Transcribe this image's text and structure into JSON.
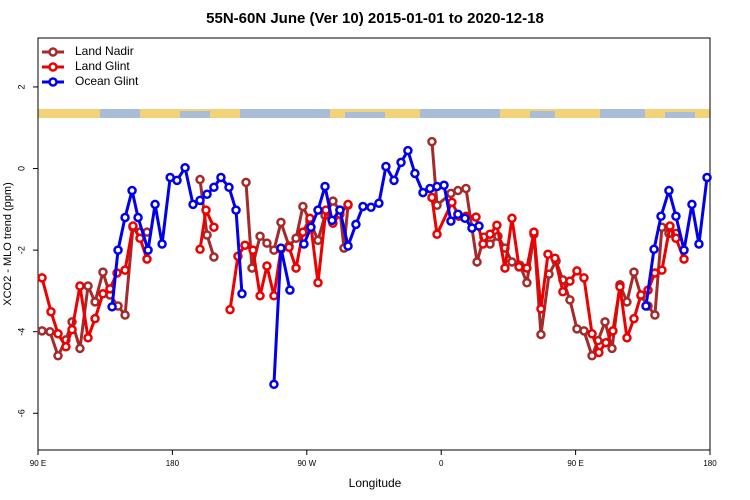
{
  "chart_data": {
    "type": "line",
    "title": "55N-60N June (Ver 10)   2015-01-01 to 2020-12-18",
    "xlabel": "Longitude",
    "ylabel": "XCO2 - MLO trend (ppm)",
    "xlim": [
      90,
      540
    ],
    "ylim": [
      -6.9,
      3.2
    ],
    "xticks": [
      {
        "value": 90,
        "label": "90 E"
      },
      {
        "value": 180,
        "label": "180"
      },
      {
        "value": 270,
        "label": "90 W"
      },
      {
        "value": 360,
        "label": "0"
      },
      {
        "value": 450,
        "label": "90 E"
      },
      {
        "value": 540,
        "label": "180"
      }
    ],
    "yticks": [
      -6,
      -4,
      -2,
      0,
      2
    ],
    "legend": "top-left",
    "series": [
      {
        "name": "Land Nadir",
        "color": "#a52a2a",
        "x": [
          92.7,
          98.0,
          103.4,
          108.7,
          112.8,
          118.1,
          123.5,
          128.2,
          133.5,
          138.2,
          143.6,
          148.3,
          153.6,
          158.3,
          163.0,
          null,
          198.5,
          203.2,
          207.8,
          null,
          229.3,
          233.3,
          238.7,
          243.3,
          248.0,
          252.7,
          258.1,
          262.8,
          267.4,
          272.1,
          277.5,
          282.2,
          287.5,
          292.2,
          294.9,
          297.6,
          null,
          353.8,
          357.2,
          366.5,
          371.2,
          376.6,
          384.0,
          388.6,
          392.7,
          398.0,
          402.7,
          407.4,
          412.7,
          417.4,
          422.1,
          426.8,
          432.2,
          436.9,
          441.5,
          446.2,
          450.9,
          455.6,
          461.0,
          465.0,
          469.7,
          474.4,
          479.7,
          484.4,
          489.1,
          493.8,
          498.5,
          503.1,
          507.8,
          512.5,
          517.2
        ],
        "values": [
          -3.98,
          -4.0,
          -4.59,
          -4.2,
          -3.76,
          -4.41,
          -2.88,
          -3.27,
          -2.54,
          -3.1,
          -3.37,
          -3.59,
          -1.44,
          -1.56,
          -1.56,
          null,
          -0.27,
          -1.63,
          -2.17,
          null,
          -0.34,
          -2.44,
          -1.66,
          -1.83,
          -2.0,
          -1.32,
          -1.9,
          -1.71,
          -0.93,
          -1.29,
          -1.76,
          -1.15,
          -0.8,
          -1.02,
          -1.95,
          -0.9,
          null,
          0.66,
          -0.9,
          -0.61,
          -0.54,
          -0.49,
          -2.29,
          -1.68,
          -1.85,
          -1.66,
          -1.95,
          -2.29,
          -2.37,
          -2.8,
          -1.61,
          -4.07,
          -2.59,
          -2.27,
          -2.73,
          -3.22,
          -3.93,
          -3.98,
          -4.59,
          -4.22,
          -3.76,
          -4.41,
          -2.85,
          -3.27,
          -2.54,
          -3.12,
          -3.37,
          -3.59,
          -1.44,
          -1.59,
          -1.59
        ]
      },
      {
        "name": "Land Glint",
        "color": "#ee0000",
        "x": [
          92.7,
          98.7,
          103.4,
          108.7,
          112.8,
          118.1,
          123.5,
          128.2,
          133.5,
          138.2,
          142.9,
          148.3,
          153.6,
          158.3,
          163.0,
          null,
          198.5,
          202.5,
          207.8,
          null,
          218.6,
          223.9,
          228.6,
          234.0,
          238.7,
          243.3,
          248.0,
          252.7,
          258.1,
          262.8,
          267.4,
          272.1,
          277.5,
          282.8,
          287.5,
          292.2,
          297.6,
          null,
          353.8,
          357.2,
          367.2,
          371.9,
          376.6,
          383.3,
          388.0,
          392.7,
          397.3,
          402.7,
          407.4,
          412.1,
          417.4,
          422.1,
          426.8,
          431.5,
          436.2,
          441.5,
          446.2,
          450.9,
          455.6,
          461.0,
          465.6,
          470.3,
          475.0,
          479.7,
          484.4,
          489.1,
          493.8,
          498.5,
          503.1,
          507.8,
          513.2,
          517.2,
          522.6
        ],
        "values": [
          -2.68,
          -3.51,
          -4.05,
          -4.37,
          -3.95,
          -2.88,
          -4.15,
          -3.68,
          -3.07,
          -2.95,
          -2.56,
          -2.49,
          -1.41,
          -1.71,
          -2.22,
          null,
          -1.98,
          -1.02,
          -1.44,
          null,
          -3.46,
          -2.15,
          -1.88,
          -2.0,
          -3.12,
          -2.39,
          -3.12,
          -1.98,
          -1.93,
          -2.44,
          -1.56,
          -1.22,
          -2.8,
          -1.02,
          -1.34,
          -1.12,
          -0.88,
          null,
          -0.71,
          -1.61,
          -0.83,
          -1.17,
          -1.17,
          -1.19,
          -1.85,
          -1.61,
          -1.39,
          -2.44,
          -1.22,
          -2.41,
          -2.44,
          -1.56,
          -3.44,
          -2.1,
          -2.2,
          -3.02,
          -2.76,
          -2.51,
          -2.68,
          -4.05,
          -4.51,
          -4.27,
          -3.98,
          -2.9,
          -4.15,
          -3.68,
          -3.1,
          -2.98,
          -2.56,
          -2.49,
          -1.41,
          -1.71,
          -2.22
        ]
      },
      {
        "name": "Ocean Glint",
        "color": "#0000ee",
        "x": [
          139.6,
          143.6,
          148.3,
          153.0,
          157.0,
          163.7,
          168.4,
          173.1,
          178.5,
          183.1,
          188.5,
          193.8,
          198.5,
          203.2,
          207.8,
          212.5,
          217.9,
          222.6,
          226.6,
          null,
          248.0,
          252.7,
          258.7,
          null,
          268.1,
          272.8,
          277.5,
          282.2,
          286.9,
          292.2,
          297.6,
          302.9,
          307.6,
          313.0,
          318.3,
          323.0,
          328.4,
          333.1,
          337.7,
          342.4,
          347.8,
          352.5,
          357.2,
          361.9,
          366.5,
          371.2,
          375.9,
          380.6,
          385.3,
          null,
          497.1,
          502.5,
          507.2,
          512.5,
          517.2,
          522.6,
          527.9,
          532.6,
          538.0
        ],
        "values": [
          -3.39,
          -2.0,
          -1.2,
          -0.54,
          -1.2,
          -2.0,
          -0.88,
          -1.85,
          -0.22,
          -0.29,
          0.02,
          -0.88,
          -0.78,
          -0.63,
          -0.46,
          -0.22,
          -0.46,
          -1.02,
          -3.07,
          null,
          -5.29,
          -1.95,
          -2.98,
          null,
          -1.85,
          -1.44,
          -1.02,
          -0.44,
          -1.27,
          -1.02,
          -1.9,
          -1.37,
          -0.93,
          -0.95,
          -0.85,
          0.05,
          -0.29,
          0.15,
          0.44,
          -0.12,
          -0.59,
          -0.49,
          -0.44,
          -0.41,
          -1.29,
          -1.12,
          -1.22,
          -1.46,
          -1.41,
          null,
          -3.37,
          -1.98,
          -1.17,
          -0.54,
          -1.17,
          -2.0,
          -0.88,
          -1.85,
          -0.22
        ]
      }
    ]
  }
}
